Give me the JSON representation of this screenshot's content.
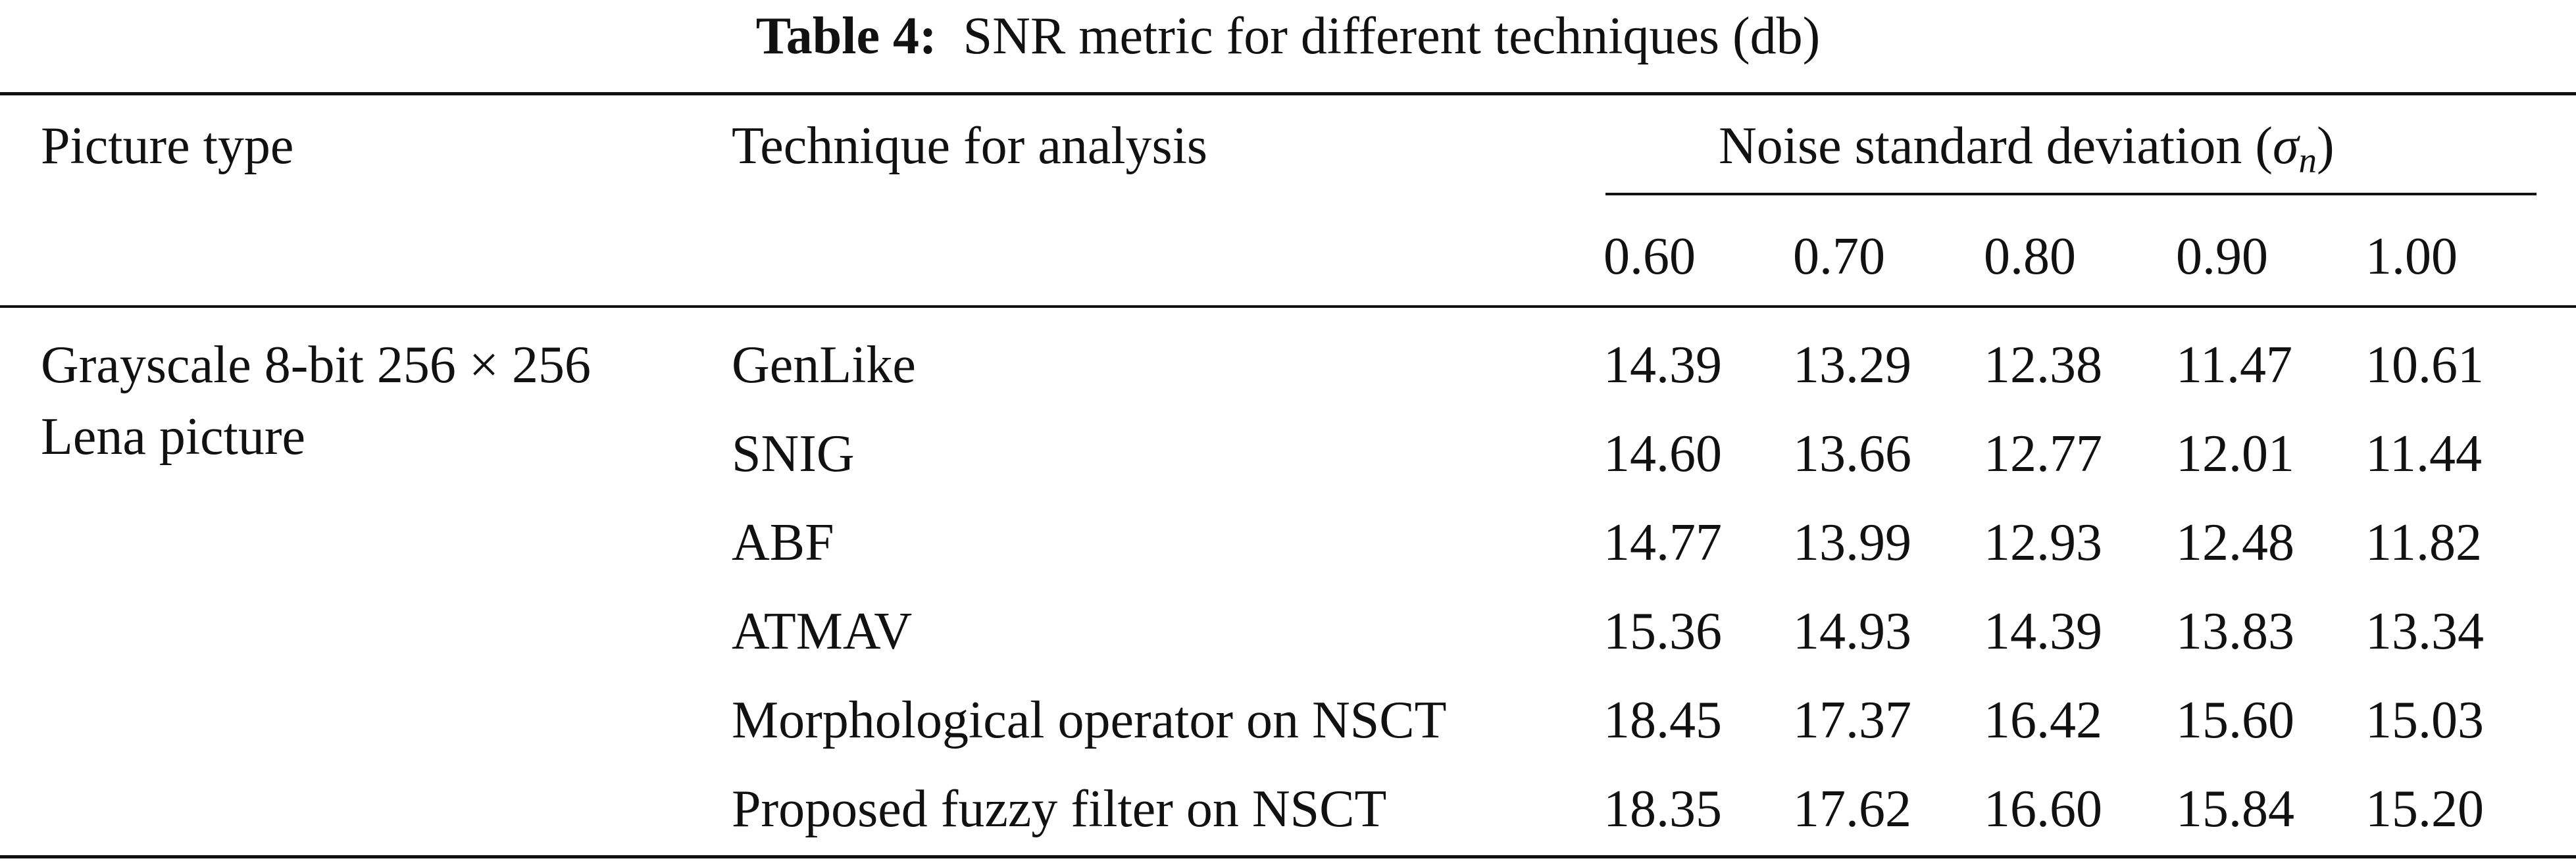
{
  "caption": {
    "label": "Table 4:",
    "text": "SNR metric for different techniques (db)"
  },
  "headers": {
    "col1": "Picture type",
    "col2": "Technique for analysis",
    "group_prefix": "Noise standard deviation (",
    "group_symbol": "σ",
    "group_subscript": "n",
    "group_suffix": ")",
    "sigma_values": [
      "0.60",
      "0.70",
      "0.80",
      "0.90",
      "1.00"
    ]
  },
  "picture_type": {
    "line1": "Grayscale 8-bit 256 × 256",
    "line2": "Lena picture"
  },
  "rows": [
    {
      "technique": "GenLike",
      "values": [
        "14.39",
        "13.29",
        "12.38",
        "11.47",
        "10.61"
      ]
    },
    {
      "technique": "SNIG",
      "values": [
        "14.60",
        "13.66",
        "12.77",
        "12.01",
        "11.44"
      ]
    },
    {
      "technique": "ABF",
      "values": [
        "14.77",
        "13.99",
        "12.93",
        "12.48",
        "11.82"
      ]
    },
    {
      "technique": "ATMAV",
      "values": [
        "15.36",
        "14.93",
        "14.39",
        "13.83",
        "13.34"
      ]
    },
    {
      "technique": "Morphological operator on NSCT",
      "values": [
        "18.45",
        "17.37",
        "16.42",
        "15.60",
        "15.03"
      ]
    },
    {
      "technique": "Proposed fuzzy filter on NSCT",
      "values": [
        "18.35",
        "17.62",
        "16.60",
        "15.84",
        "15.20"
      ]
    }
  ]
}
